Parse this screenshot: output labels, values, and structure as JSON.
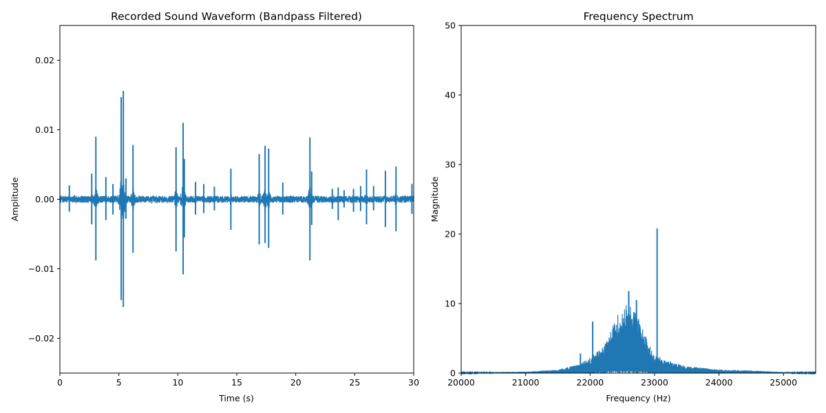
{
  "chart_data": [
    {
      "type": "line",
      "title": "Recorded Sound Waveform (Bandpass Filtered)",
      "xlabel": "Time (s)",
      "ylabel": "Amplitude",
      "xlim": [
        0,
        30
      ],
      "ylim": [
        -0.025,
        0.025
      ],
      "xticks": [
        0,
        5,
        10,
        15,
        20,
        25,
        30
      ],
      "xtick_labels": [
        "0",
        "5",
        "10",
        "15",
        "20",
        "25",
        "30"
      ],
      "yticks": [
        -0.02,
        -0.01,
        0.0,
        0.01,
        0.02
      ],
      "ytick_labels": [
        "−0.02",
        "−0.01",
        "0.00",
        "0.01",
        "0.02"
      ],
      "color": "#1f77b4",
      "grid": false,
      "baseline_noise_amplitude": 0.0005,
      "spikes": [
        {
          "t": 0.8,
          "peak": 0.002,
          "trough": -0.0018
        },
        {
          "t": 2.7,
          "peak": 0.0037,
          "trough": -0.0036
        },
        {
          "t": 3.05,
          "peak": 0.009,
          "trough": -0.0088
        },
        {
          "t": 3.9,
          "peak": 0.0032,
          "trough": -0.003
        },
        {
          "t": 4.5,
          "peak": 0.0022,
          "trough": -0.0022
        },
        {
          "t": 5.2,
          "peak": 0.0147,
          "trough": -0.0145
        },
        {
          "t": 5.38,
          "peak": 0.0156,
          "trough": -0.0155
        },
        {
          "t": 5.6,
          "peak": 0.003,
          "trough": -0.0028
        },
        {
          "t": 6.2,
          "peak": 0.0078,
          "trough": -0.0077
        },
        {
          "t": 9.85,
          "peak": 0.0075,
          "trough": -0.0075
        },
        {
          "t": 10.45,
          "peak": 0.011,
          "trough": -0.0108
        },
        {
          "t": 10.55,
          "peak": 0.0058,
          "trough": -0.0055
        },
        {
          "t": 11.5,
          "peak": 0.0025,
          "trough": -0.0022
        },
        {
          "t": 12.2,
          "peak": 0.0022,
          "trough": -0.002
        },
        {
          "t": 13.1,
          "peak": 0.0018,
          "trough": -0.0016
        },
        {
          "t": 14.5,
          "peak": 0.0044,
          "trough": -0.0044
        },
        {
          "t": 16.9,
          "peak": 0.0065,
          "trough": -0.0065
        },
        {
          "t": 17.4,
          "peak": 0.0077,
          "trough": -0.0063
        },
        {
          "t": 17.7,
          "peak": 0.0073,
          "trough": -0.007
        },
        {
          "t": 18.9,
          "peak": 0.0024,
          "trough": -0.0022
        },
        {
          "t": 21.2,
          "peak": 0.0089,
          "trough": -0.0088
        },
        {
          "t": 21.35,
          "peak": 0.004,
          "trough": -0.0037
        },
        {
          "t": 23.1,
          "peak": 0.0015,
          "trough": -0.0014
        },
        {
          "t": 23.6,
          "peak": 0.0017,
          "trough": -0.003
        },
        {
          "t": 24.1,
          "peak": 0.0013,
          "trough": -0.0012
        },
        {
          "t": 24.9,
          "peak": 0.0015,
          "trough": -0.0018
        },
        {
          "t": 25.5,
          "peak": 0.0019,
          "trough": -0.0017
        },
        {
          "t": 26.0,
          "peak": 0.0043,
          "trough": -0.0036
        },
        {
          "t": 26.6,
          "peak": 0.0019,
          "trough": -0.0016
        },
        {
          "t": 27.6,
          "peak": 0.0041,
          "trough": -0.004
        },
        {
          "t": 28.5,
          "peak": 0.0047,
          "trough": -0.0046
        },
        {
          "t": 29.85,
          "peak": 0.0022,
          "trough": -0.0021
        }
      ]
    },
    {
      "type": "line",
      "title": "Frequency Spectrum",
      "xlabel": "Frequency (Hz)",
      "ylabel": "Magnitude",
      "xlim": [
        20000,
        25500
      ],
      "ylim": [
        0,
        50
      ],
      "xticks": [
        20000,
        21000,
        22000,
        23000,
        24000,
        25000
      ],
      "xtick_labels": [
        "20000",
        "21000",
        "22000",
        "23000",
        "24000",
        "25000"
      ],
      "yticks": [
        0,
        10,
        20,
        30,
        40,
        50
      ],
      "ytick_labels": [
        "0",
        "10",
        "20",
        "30",
        "40",
        "50"
      ],
      "color": "#1f77b4",
      "grid": false,
      "envelope": [
        {
          "f": 20000,
          "mag": 0.1
        },
        {
          "f": 21000,
          "mag": 0.2
        },
        {
          "f": 21500,
          "mag": 0.5
        },
        {
          "f": 21800,
          "mag": 1.2
        },
        {
          "f": 22000,
          "mag": 2.2
        },
        {
          "f": 22200,
          "mag": 3.8
        },
        {
          "f": 22300,
          "mag": 5.5
        },
        {
          "f": 22400,
          "mag": 8.0
        },
        {
          "f": 22500,
          "mag": 9.5
        },
        {
          "f": 22600,
          "mag": 10.0
        },
        {
          "f": 22700,
          "mag": 9.0
        },
        {
          "f": 22800,
          "mag": 7.0
        },
        {
          "f": 22900,
          "mag": 4.5
        },
        {
          "f": 23000,
          "mag": 3.0
        },
        {
          "f": 23200,
          "mag": 1.8
        },
        {
          "f": 23500,
          "mag": 1.0
        },
        {
          "f": 24000,
          "mag": 0.5
        },
        {
          "f": 24300,
          "mag": 0.45
        },
        {
          "f": 25000,
          "mag": 0.15
        },
        {
          "f": 25500,
          "mag": 0.1
        }
      ],
      "peaks": [
        {
          "f": 21850,
          "mag": 2.8
        },
        {
          "f": 22040,
          "mag": 7.4
        },
        {
          "f": 22600,
          "mag": 11.8
        },
        {
          "f": 22720,
          "mag": 10.5
        },
        {
          "f": 23040,
          "mag": 20.8
        }
      ]
    }
  ]
}
